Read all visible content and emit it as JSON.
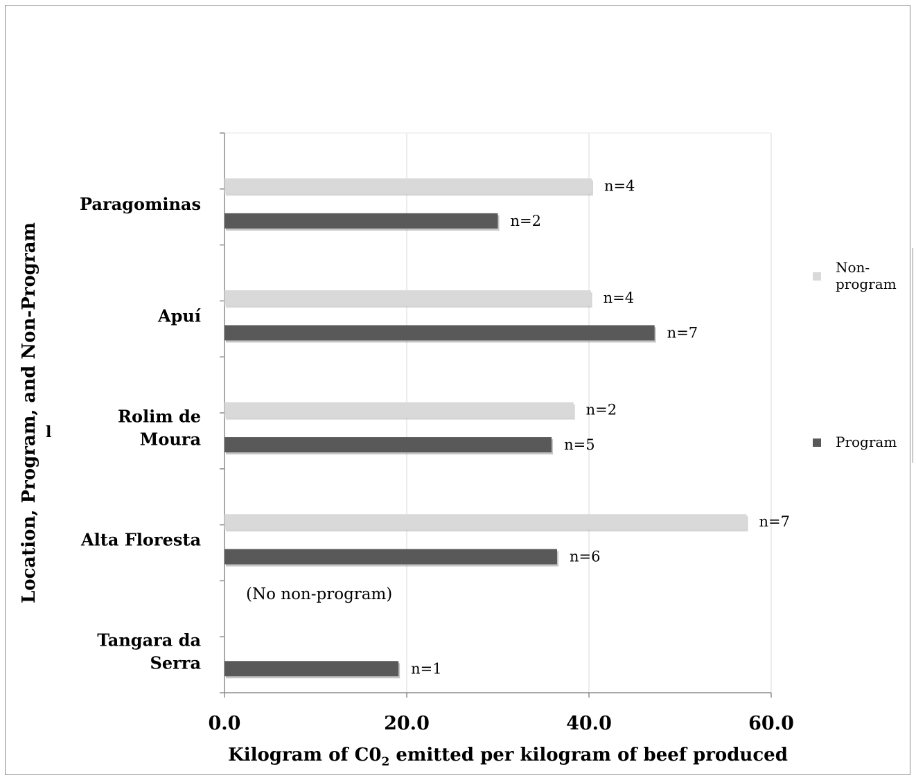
{
  "chart_data": {
    "type": "bar",
    "orientation": "horizontal",
    "categories": [
      "Paragominas",
      "Apuí",
      "Rolim de Moura",
      "Alta Floresta",
      "Tangara da Serra"
    ],
    "series": [
      {
        "name": "Non-program",
        "color": "#d9d9d9",
        "values": [
          40.3,
          40.2,
          38.3,
          57.3,
          null
        ],
        "labels": [
          "n=4",
          "n=4",
          "n=2",
          "n=7",
          ""
        ]
      },
      {
        "name": "Program",
        "color": "#595959",
        "values": [
          30.0,
          47.2,
          35.9,
          36.5,
          19.1
        ],
        "labels": [
          "n=2",
          "n=7",
          "n=5",
          "n=6",
          "n=1"
        ]
      }
    ],
    "xlabel_parts": [
      "Kilogram of C0",
      "2",
      " emitted per kilogram of beef produced"
    ],
    "ylabel": "Location, Program, and Non-Program",
    "ylabel_fragment": "l",
    "xlim": [
      0,
      60
    ],
    "xticks": [
      "0.0",
      "20.0",
      "40.0",
      "60.0"
    ],
    "xtick_values": [
      0,
      20,
      40,
      60
    ],
    "grid": "vertical",
    "legend_position": "right",
    "annotation": "(No non-program)"
  }
}
